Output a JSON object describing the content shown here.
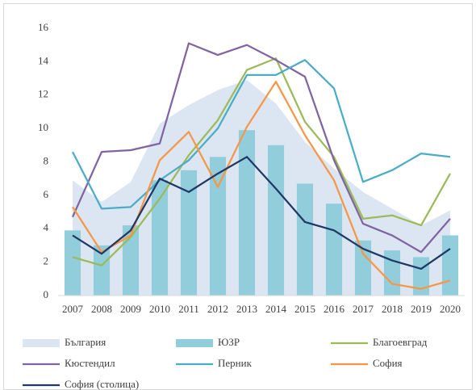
{
  "chart_data": {
    "type": "combo",
    "categories": [
      "2007",
      "2008",
      "2009",
      "2010",
      "2011",
      "2012",
      "2013",
      "2014",
      "2015",
      "2016",
      "2017",
      "2018",
      "2019",
      "2020"
    ],
    "ylim": [
      0,
      16
    ],
    "yticks": [
      0,
      2,
      4,
      6,
      8,
      10,
      12,
      14,
      16
    ],
    "grid": false,
    "legend": "bottom",
    "series": [
      {
        "name": "България",
        "type": "area",
        "color": "#dce6f2",
        "values": [
          6.9,
          5.6,
          6.8,
          10.3,
          11.4,
          12.3,
          12.9,
          11.5,
          9.2,
          7.6,
          6.2,
          5.2,
          4.2,
          5.1
        ]
      },
      {
        "name": "ЮЗР",
        "type": "bar",
        "color": "#92cddc",
        "values": [
          3.9,
          3.0,
          4.2,
          6.9,
          7.5,
          8.3,
          9.9,
          9.0,
          6.7,
          5.5,
          3.3,
          2.7,
          2.3,
          3.6
        ]
      },
      {
        "name": "Благоевград",
        "type": "line",
        "color": "#9bbb59",
        "values": [
          2.3,
          1.8,
          3.5,
          5.8,
          8.4,
          10.5,
          13.5,
          14.2,
          10.4,
          8.3,
          4.6,
          4.8,
          4.2,
          7.3
        ]
      },
      {
        "name": "Кюстендил",
        "type": "line",
        "color": "#8064a2",
        "values": [
          4.7,
          8.6,
          8.7,
          9.1,
          15.1,
          14.4,
          15.0,
          14.1,
          13.1,
          8.1,
          4.3,
          3.6,
          2.6,
          4.6
        ]
      },
      {
        "name": "Перник",
        "type": "line",
        "color": "#4bacc6",
        "values": [
          8.6,
          5.2,
          5.3,
          6.9,
          8.1,
          10.0,
          13.2,
          13.2,
          14.1,
          12.4,
          6.8,
          7.5,
          8.5,
          8.3
        ]
      },
      {
        "name": "София",
        "type": "line",
        "color": "#f79646",
        "values": [
          5.3,
          2.6,
          3.6,
          8.1,
          9.8,
          6.5,
          10.1,
          12.8,
          9.6,
          6.9,
          2.5,
          0.7,
          0.4,
          0.9
        ]
      },
      {
        "name": "София (столица)",
        "type": "line",
        "color": "#1f3864",
        "values": [
          3.6,
          2.5,
          3.9,
          7.0,
          6.2,
          7.3,
          8.3,
          6.4,
          4.4,
          3.9,
          2.8,
          2.1,
          1.6,
          2.8
        ]
      }
    ]
  }
}
